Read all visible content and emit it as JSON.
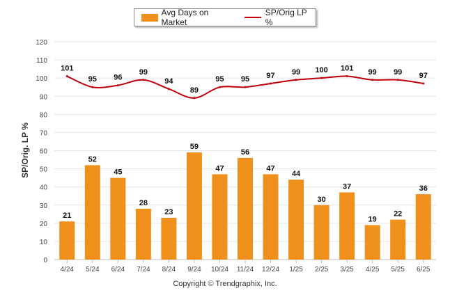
{
  "colors": {
    "bar": "#f0901c",
    "line": "#c0000a",
    "grid": "#e6e6e6",
    "axis": "#bdbdbd"
  },
  "legend": {
    "position": "top-center"
  },
  "copyright": "Copyright © Trendgraphix, Inc.",
  "chart_data": {
    "type": "bar",
    "ylabel": "SP/Orig. LP %",
    "xlabel": "",
    "ylim": [
      0,
      120
    ],
    "yticks": [
      0,
      10,
      20,
      30,
      40,
      50,
      60,
      70,
      80,
      90,
      100,
      110,
      120
    ],
    "grid": true,
    "categories": [
      "4/24",
      "5/24",
      "6/24",
      "7/24",
      "8/24",
      "9/24",
      "10/24",
      "11/24",
      "12/24",
      "1/25",
      "2/25",
      "3/25",
      "4/25",
      "5/25",
      "6/25"
    ],
    "series": [
      {
        "name": "Avg Days on Market",
        "type": "bar",
        "values": [
          21,
          52,
          45,
          28,
          23,
          59,
          47,
          56,
          47,
          44,
          30,
          37,
          19,
          22,
          36
        ]
      },
      {
        "name": "SP/Orig LP %",
        "type": "line",
        "values": [
          101,
          95,
          96,
          99,
          94,
          89,
          95,
          95,
          97,
          99,
          100,
          101,
          99,
          99,
          97
        ]
      }
    ]
  }
}
